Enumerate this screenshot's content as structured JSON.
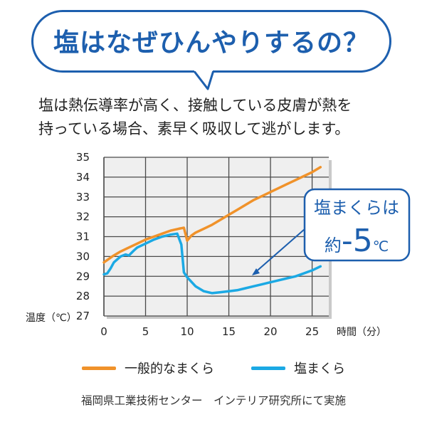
{
  "header": {
    "title": "塩はなぜひんやりするの？"
  },
  "description": [
    "塩は熱伝導率が高く、接触している皮膚が熱を",
    "持っている場合、素早く吸収して逃がします。"
  ],
  "footer": "福岡県工業技術センター　インテリア研究所にて実施",
  "callout": {
    "line1": "塩まくらは",
    "prefix": "約",
    "value": "-5",
    "unit": "℃"
  },
  "colors": {
    "accent": "#1d5fae",
    "general": "#f0922a",
    "salt": "#1ba9e4",
    "grid": "#4a4a4a"
  },
  "chart_data": {
    "type": "line",
    "title": "",
    "xlabel": "時間（分）",
    "ylabel": "温度（℃）",
    "xlim": [
      0,
      27
    ],
    "ylim": [
      27,
      35
    ],
    "x_ticks": [
      0,
      5,
      10,
      15,
      20,
      25
    ],
    "y_ticks": [
      27,
      28,
      29,
      30,
      31,
      32,
      33,
      34,
      35
    ],
    "grid": true,
    "legend_position": "bottom",
    "series": [
      {
        "name": "一般的なまくら",
        "color": "#f0922a",
        "x": [
          0,
          1,
          2,
          3,
          4,
          5,
          6,
          7,
          8,
          9,
          9.6,
          10,
          10.5,
          11,
          12,
          13,
          14,
          15,
          16,
          17,
          18,
          19,
          20,
          21,
          22,
          23,
          24,
          25,
          26
        ],
        "y": [
          29.7,
          30.0,
          30.25,
          30.45,
          30.65,
          30.85,
          31.0,
          31.15,
          31.3,
          31.4,
          31.45,
          30.8,
          31.05,
          31.2,
          31.4,
          31.6,
          31.85,
          32.1,
          32.35,
          32.6,
          32.85,
          33.05,
          33.25,
          33.45,
          33.65,
          33.85,
          34.05,
          34.25,
          34.5
        ]
      },
      {
        "name": "塩まくら",
        "color": "#1ba9e4",
        "x": [
          0,
          0.4,
          0.8,
          1.2,
          2,
          2.6,
          3,
          3.6,
          4,
          5,
          6,
          7,
          8,
          8.8,
          9.3,
          9.6,
          10,
          11,
          12,
          13,
          14,
          15,
          16,
          17,
          18,
          19,
          20,
          21,
          22,
          23,
          24,
          25,
          26
        ],
        "y": [
          29.1,
          29.15,
          29.4,
          29.7,
          30.0,
          30.1,
          30.05,
          30.3,
          30.45,
          30.65,
          30.85,
          31.0,
          31.1,
          31.15,
          30.6,
          29.2,
          28.95,
          28.5,
          28.25,
          28.15,
          28.2,
          28.25,
          28.3,
          28.4,
          28.5,
          28.6,
          28.7,
          28.8,
          28.9,
          29.0,
          29.15,
          29.3,
          29.5
        ]
      }
    ]
  }
}
